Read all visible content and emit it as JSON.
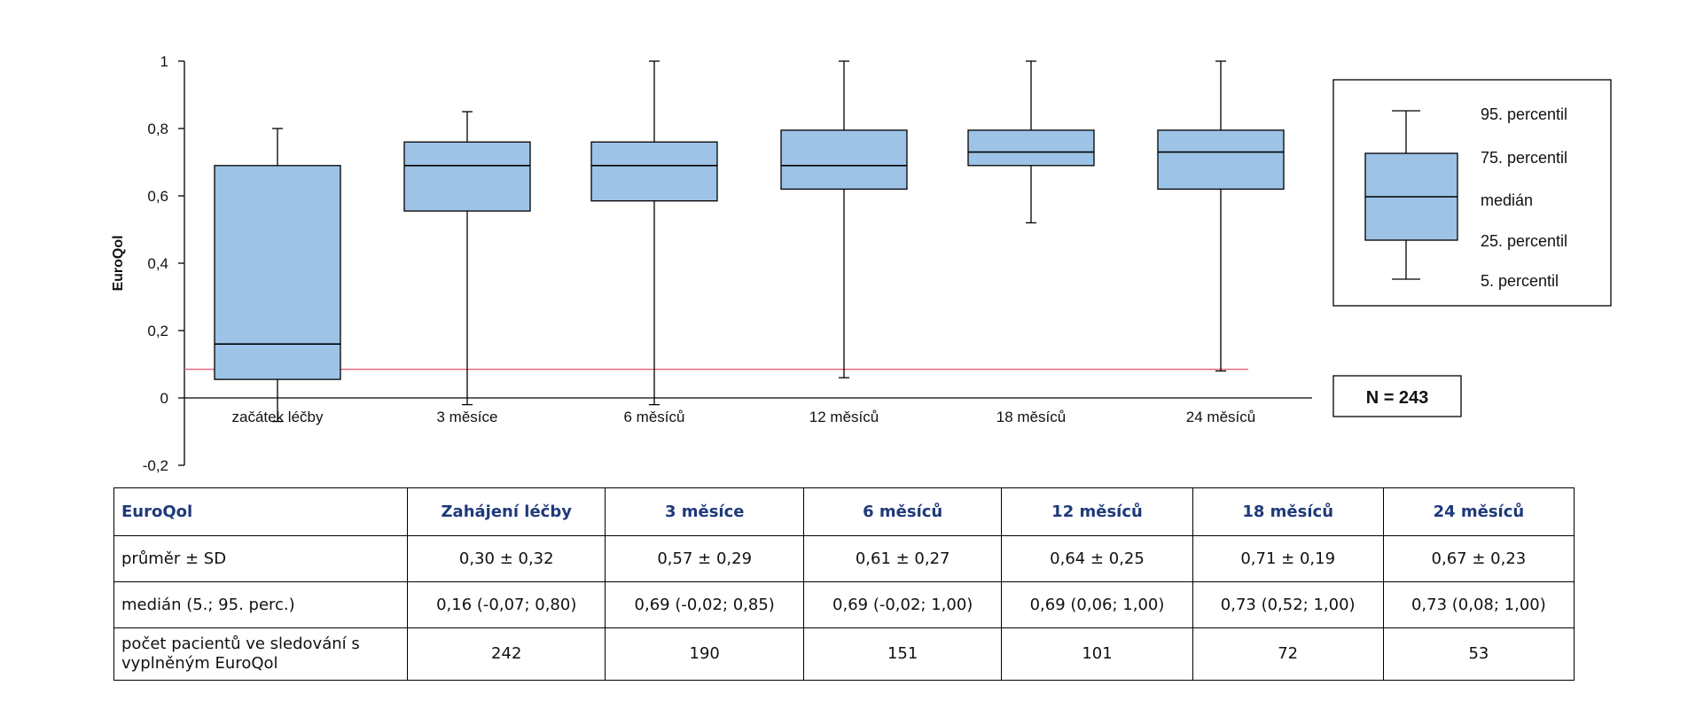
{
  "chart_data": {
    "type": "box",
    "ylabel": "EuroQol",
    "ylim": [
      -0.2,
      1
    ],
    "yticks": [
      "1",
      "0,8",
      "0,6",
      "0,4",
      "0,2",
      "0",
      "-0,2"
    ],
    "categories": [
      "začátek léčby",
      "3 měsíce",
      "6 měsíců",
      "12 měsíců",
      "18 měsíců",
      "24 měsíců"
    ],
    "boxes": [
      {
        "p5": -0.07,
        "p25": 0.055,
        "median": 0.16,
        "p75": 0.69,
        "p95": 0.8
      },
      {
        "p5": -0.02,
        "p25": 0.555,
        "median": 0.69,
        "p75": 0.76,
        "p95": 0.85
      },
      {
        "p5": -0.02,
        "p25": 0.585,
        "median": 0.69,
        "p75": 0.76,
        "p95": 1.0
      },
      {
        "p5": 0.06,
        "p25": 0.62,
        "median": 0.69,
        "p75": 0.795,
        "p95": 1.0
      },
      {
        "p5": 0.52,
        "p25": 0.69,
        "median": 0.73,
        "p75": 0.795,
        "p95": 1.0
      },
      {
        "p5": 0.08,
        "p25": 0.62,
        "median": 0.73,
        "p75": 0.795,
        "p95": 1.0
      }
    ],
    "reference_line": {
      "value": 0.085,
      "color": "#e0607a"
    },
    "box_fill": "#9dc3e6",
    "legend": {
      "labels": [
        "95. percentil",
        "75. percentil",
        "medián",
        "25. percentil",
        "5. percentil"
      ]
    },
    "n_label": "N = 243"
  },
  "table": {
    "headers": [
      "EuroQol",
      "Zahájení léčby",
      "3 měsíce",
      "6 měsíců",
      "12 měsíců",
      "18 měsíců",
      "24 měsíců"
    ],
    "rows": [
      [
        "průměr ± SD",
        "0,30 ± 0,32",
        "0,57 ± 0,29",
        "0,61 ± 0,27",
        "0,64 ± 0,25",
        "0,71 ± 0,19",
        "0,67 ± 0,23"
      ],
      [
        "medián (5.; 95. perc.)",
        "0,16 (-0,07; 0,80)",
        "0,69 (-0,02; 0,85)",
        "0,69 (-0,02; 1,00)",
        "0,69 (0,06; 1,00)",
        "0,73 (0,52; 1,00)",
        "0,73 (0,08; 1,00)"
      ],
      [
        "počet pacientů ve sledování s vyplněným EuroQol",
        "242",
        "190",
        "151",
        "101",
        "72",
        "53"
      ]
    ],
    "header_color": "#1f3a7a"
  }
}
